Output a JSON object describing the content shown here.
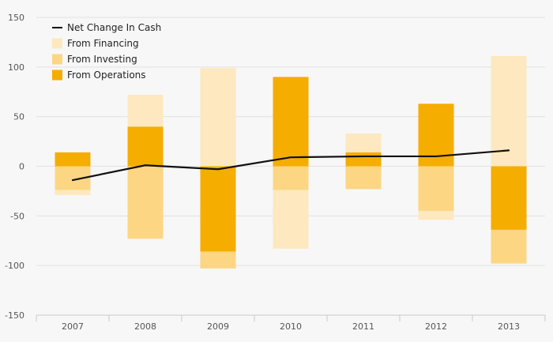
{
  "chart_data": {
    "type": "bar",
    "categories": [
      "2007",
      "2008",
      "2009",
      "2010",
      "2011",
      "2012",
      "2013"
    ],
    "ylim": [
      -150,
      150
    ],
    "yticks": [
      150,
      100,
      50,
      0,
      -50,
      -100,
      -150
    ],
    "grid": true,
    "legend_position": "top-left",
    "series": [
      {
        "name": "Net Change In Cash",
        "kind": "line",
        "color": "#111111",
        "values": [
          -14,
          1,
          -3,
          9,
          10,
          10,
          16
        ]
      },
      {
        "name": "From Financing",
        "kind": "bar",
        "color": "#fde8bf",
        "values": [
          -5,
          32,
          99,
          -59,
          19,
          -9,
          111
        ]
      },
      {
        "name": "From Investing",
        "kind": "bar",
        "color": "#fcd683",
        "values": [
          -24,
          -73,
          -17,
          -24,
          -23,
          -45,
          -34
        ]
      },
      {
        "name": "From Operations",
        "kind": "bar",
        "color": "#f5ad00",
        "values": [
          14,
          40,
          -86,
          90,
          14,
          63,
          -64
        ]
      }
    ]
  }
}
